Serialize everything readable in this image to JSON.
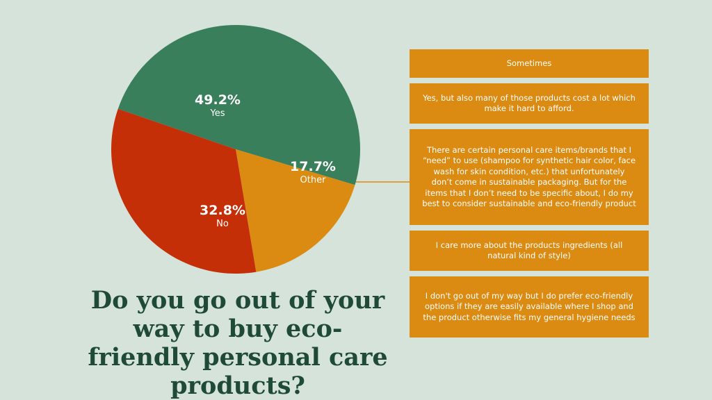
{
  "question": "Do you go out of your way to buy eco-friendly personal care products?",
  "chart_data": {
    "type": "pie",
    "slices": [
      {
        "label": "Yes",
        "percent_label": "49.2%",
        "value": 49.2,
        "color": "#3a7f5b"
      },
      {
        "label": "Other",
        "percent_label": "17.7%",
        "value": 17.7,
        "color": "#db8b12"
      },
      {
        "label": "No",
        "percent_label": "32.8%",
        "value": 32.8,
        "color": "#c42f08"
      }
    ]
  },
  "other_responses": [
    "Sometimes",
    "Yes, but also many of those products cost a lot which make it hard to afford.",
    "There are certain personal care items/brands that I “need” to use (shampoo for synthetic hair color, face wash for skin condition, etc.) that unfortunately don’t come in sustainable packaging. But for the items that I don’t need to be specific about, I do my best to consider sustainable and eco-friendly product",
    "I care more about the products ingredients (all natural kind of style)",
    "I don't go out of my way but I do prefer eco-friendly options if they are easily available where I shop and the product otherwise fits my general hygiene needs"
  ]
}
